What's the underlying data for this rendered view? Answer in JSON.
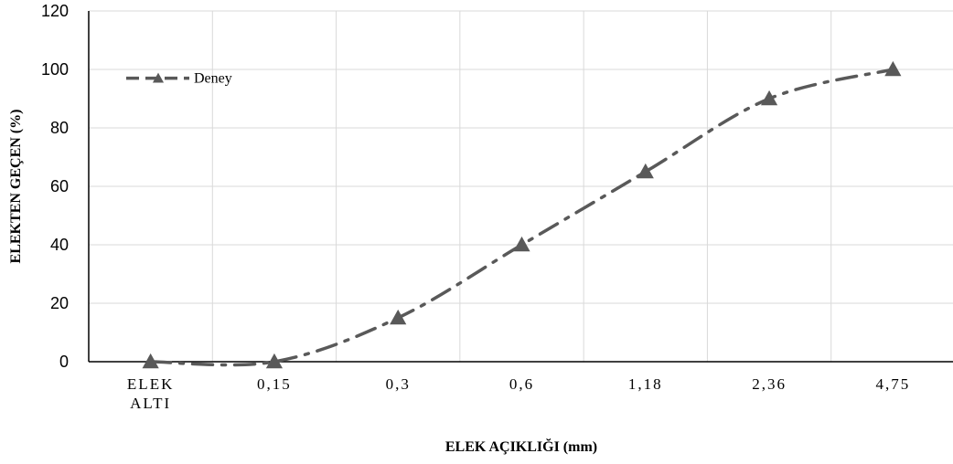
{
  "chart_data": {
    "type": "line",
    "categories": [
      "ELEK ALTI",
      "0,15",
      "0,3",
      "0,6",
      "1,18",
      "2,36",
      "4,75"
    ],
    "category_lines": [
      [
        "ELEK",
        "ALTI"
      ],
      [
        "0,15"
      ],
      [
        "0,3"
      ],
      [
        "0,6"
      ],
      [
        "1,18"
      ],
      [
        "2,36"
      ],
      [
        "4,75"
      ]
    ],
    "series": [
      {
        "name": "Deney",
        "values": [
          0,
          0,
          15,
          40,
          65,
          90,
          100
        ],
        "marker": "triangle",
        "line_style": "dash-dot"
      }
    ],
    "title": "",
    "xlabel": "ELEK AÇIKLIĞI (mm)",
    "ylabel": "ELEKTEN GEÇEN (%)",
    "ylim": [
      0,
      120
    ],
    "yticks": [
      "0",
      "20",
      "40",
      "60",
      "80",
      "100",
      "120"
    ],
    "grid": true,
    "legend_placement": "top-left",
    "colors": {
      "series": "#595959",
      "grid": "#d9d9d9",
      "axis": "#000000"
    }
  }
}
